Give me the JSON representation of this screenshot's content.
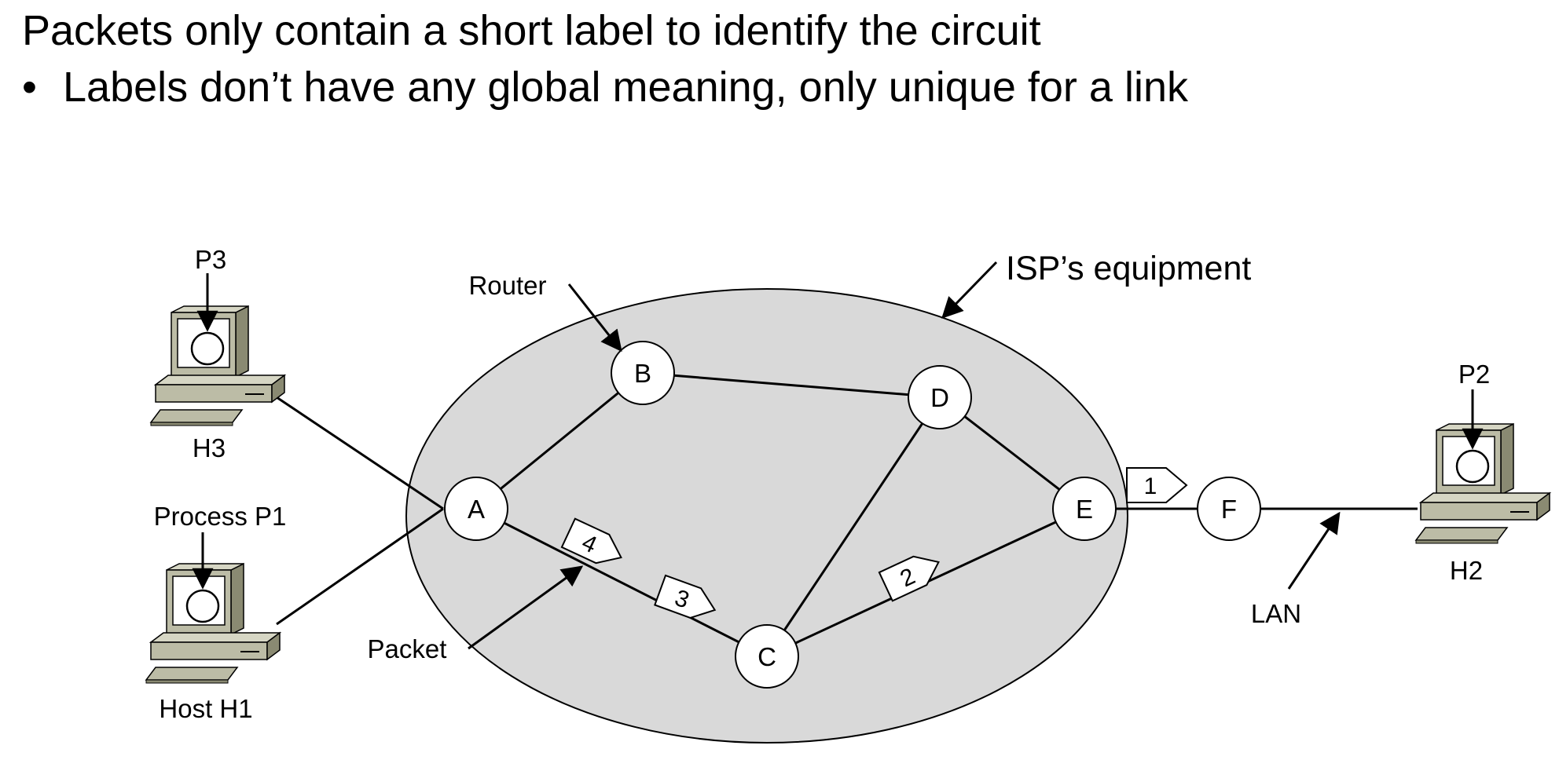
{
  "slide": {
    "heading": "Packets only contain a short label to identify the circuit",
    "bullet_marker": "•",
    "bullet": "Labels don’t have any global meaning, only unique for a link"
  },
  "diagram": {
    "annotations": {
      "isp": "ISP’s equipment",
      "router": "Router",
      "packet": "Packet",
      "lan": "LAN"
    },
    "routers": {
      "A": "A",
      "B": "B",
      "C": "C",
      "D": "D",
      "E": "E",
      "F": "F"
    },
    "hosts": {
      "h3": {
        "label": "H3",
        "process": "P3"
      },
      "h1": {
        "label": "Host H1",
        "process": "Process P1"
      },
      "h2": {
        "label": "H2",
        "process": "P2"
      }
    },
    "packet_labels": {
      "p1": "1",
      "p2": "2",
      "p3": "3",
      "p4": "4"
    },
    "colors": {
      "cloud_fill": "#d9d9d9",
      "host_body": "#bcbca6",
      "host_dark": "#8a8a72",
      "line": "#000000"
    }
  }
}
